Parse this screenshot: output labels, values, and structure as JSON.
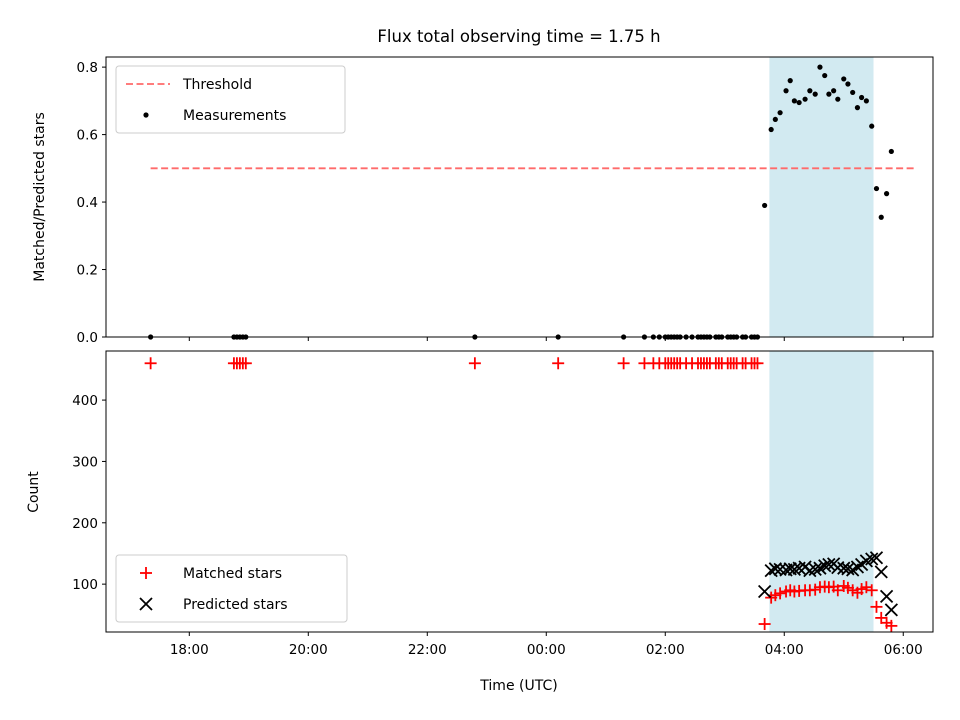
{
  "chart_data": {
    "title": "Flux total observing time = 1.75 h",
    "xlabel": "Time (UTC)",
    "x_ticks": [
      "18:00",
      "20:00",
      "22:00",
      "00:00",
      "02:00",
      "04:00",
      "06:00"
    ],
    "x_tick_hours": [
      18,
      20,
      22,
      24,
      26,
      28,
      30
    ],
    "xlim_hours": [
      16.6,
      30.5
    ],
    "highlight_band_hours": [
      27.75,
      29.5
    ],
    "colors": {
      "threshold": "#ff6a6a",
      "measurement": "#000000",
      "matched": "#ff0000",
      "predicted": "#000000",
      "band": "#add8e6"
    },
    "panels": [
      {
        "type": "scatter",
        "ylabel": "Matched/Predicted stars",
        "ylim": [
          0,
          0.83
        ],
        "y_ticks": [
          0,
          0.2,
          0.4,
          0.6,
          0.8
        ],
        "y_tick_labels": [
          "0.0",
          "0.2",
          "0.4",
          "0.6",
          "0.8"
        ],
        "legend": {
          "position": "upper-left",
          "entries": [
            "Threshold",
            "Measurements"
          ]
        },
        "threshold": {
          "name": "Threshold",
          "y": 0.5,
          "x_range": [
            17.35,
            30.2
          ]
        },
        "series": [
          {
            "name": "Measurements",
            "points": [
              [
                17.35,
                0
              ],
              [
                18.75,
                0
              ],
              [
                18.8,
                0
              ],
              [
                18.85,
                0
              ],
              [
                18.9,
                0
              ],
              [
                18.95,
                0
              ],
              [
                22.8,
                0
              ],
              [
                24.2,
                0
              ],
              [
                25.3,
                0
              ],
              [
                25.65,
                0
              ],
              [
                25.8,
                0
              ],
              [
                25.9,
                0
              ],
              [
                26.0,
                0
              ],
              [
                26.05,
                0
              ],
              [
                26.1,
                0
              ],
              [
                26.15,
                0
              ],
              [
                26.2,
                0
              ],
              [
                26.25,
                0
              ],
              [
                26.35,
                0
              ],
              [
                26.45,
                0
              ],
              [
                26.55,
                0
              ],
              [
                26.6,
                0
              ],
              [
                26.65,
                0
              ],
              [
                26.7,
                0
              ],
              [
                26.75,
                0
              ],
              [
                26.85,
                0
              ],
              [
                26.9,
                0
              ],
              [
                26.95,
                0
              ],
              [
                27.05,
                0
              ],
              [
                27.1,
                0
              ],
              [
                27.15,
                0
              ],
              [
                27.2,
                0
              ],
              [
                27.3,
                0
              ],
              [
                27.35,
                0
              ],
              [
                27.45,
                0
              ],
              [
                27.5,
                0
              ],
              [
                27.55,
                0
              ],
              [
                27.67,
                0.39
              ],
              [
                27.78,
                0.615
              ],
              [
                27.85,
                0.645
              ],
              [
                27.93,
                0.665
              ],
              [
                28.03,
                0.73
              ],
              [
                28.1,
                0.76
              ],
              [
                28.17,
                0.7
              ],
              [
                28.25,
                0.695
              ],
              [
                28.35,
                0.705
              ],
              [
                28.43,
                0.73
              ],
              [
                28.52,
                0.72
              ],
              [
                28.6,
                0.8
              ],
              [
                28.68,
                0.775
              ],
              [
                28.75,
                0.72
              ],
              [
                28.83,
                0.73
              ],
              [
                28.9,
                0.705
              ],
              [
                29.0,
                0.765
              ],
              [
                29.07,
                0.75
              ],
              [
                29.15,
                0.725
              ],
              [
                29.23,
                0.68
              ],
              [
                29.3,
                0.71
              ],
              [
                29.38,
                0.7
              ],
              [
                29.47,
                0.625
              ],
              [
                29.55,
                0.44
              ],
              [
                29.63,
                0.355
              ],
              [
                29.72,
                0.425
              ],
              [
                29.8,
                0.55
              ]
            ]
          }
        ]
      },
      {
        "type": "scatter",
        "ylabel": "Count",
        "ylim": [
          22,
          480
        ],
        "y_ticks": [
          100,
          200,
          300,
          400
        ],
        "y_tick_labels": [
          "100",
          "200",
          "300",
          "400"
        ],
        "legend": {
          "position": "lower-left",
          "entries": [
            "Matched stars",
            "Predicted stars"
          ]
        },
        "series": [
          {
            "name": "Matched stars",
            "marker": "plus",
            "points": [
              [
                17.35,
                460
              ],
              [
                18.75,
                460
              ],
              [
                18.8,
                460
              ],
              [
                18.85,
                460
              ],
              [
                18.9,
                460
              ],
              [
                18.95,
                460
              ],
              [
                22.8,
                460
              ],
              [
                24.2,
                460
              ],
              [
                25.3,
                460
              ],
              [
                25.65,
                460
              ],
              [
                25.8,
                460
              ],
              [
                25.9,
                460
              ],
              [
                26.0,
                460
              ],
              [
                26.05,
                460
              ],
              [
                26.1,
                460
              ],
              [
                26.15,
                460
              ],
              [
                26.2,
                460
              ],
              [
                26.25,
                460
              ],
              [
                26.35,
                460
              ],
              [
                26.45,
                460
              ],
              [
                26.55,
                460
              ],
              [
                26.6,
                460
              ],
              [
                26.65,
                460
              ],
              [
                26.7,
                460
              ],
              [
                26.75,
                460
              ],
              [
                26.85,
                460
              ],
              [
                26.9,
                460
              ],
              [
                26.95,
                460
              ],
              [
                27.05,
                460
              ],
              [
                27.1,
                460
              ],
              [
                27.15,
                460
              ],
              [
                27.2,
                460
              ],
              [
                27.3,
                460
              ],
              [
                27.35,
                460
              ],
              [
                27.45,
                460
              ],
              [
                27.5,
                460
              ],
              [
                27.55,
                460
              ],
              [
                27.67,
                35
              ],
              [
                27.78,
                78
              ],
              [
                27.85,
                82
              ],
              [
                27.93,
                85
              ],
              [
                28.03,
                88
              ],
              [
                28.1,
                90
              ],
              [
                28.17,
                88
              ],
              [
                28.25,
                89
              ],
              [
                28.35,
                90
              ],
              [
                28.43,
                90
              ],
              [
                28.52,
                91
              ],
              [
                28.6,
                95
              ],
              [
                28.68,
                96
              ],
              [
                28.75,
                95
              ],
              [
                28.83,
                96
              ],
              [
                28.9,
                90
              ],
              [
                29.0,
                97
              ],
              [
                29.07,
                94
              ],
              [
                29.15,
                90
              ],
              [
                29.23,
                86
              ],
              [
                29.3,
                92
              ],
              [
                29.38,
                95
              ],
              [
                29.47,
                90
              ],
              [
                29.55,
                63
              ],
              [
                29.63,
                45
              ],
              [
                29.72,
                37
              ],
              [
                29.8,
                32
              ]
            ]
          },
          {
            "name": "Predicted stars",
            "marker": "x",
            "points": [
              [
                27.67,
                88
              ],
              [
                27.78,
                122
              ],
              [
                27.85,
                125
              ],
              [
                27.93,
                124
              ],
              [
                28.03,
                123
              ],
              [
                28.1,
                125
              ],
              [
                28.17,
                124
              ],
              [
                28.25,
                126
              ],
              [
                28.35,
                128
              ],
              [
                28.43,
                122
              ],
              [
                28.52,
                124
              ],
              [
                28.6,
                126
              ],
              [
                28.68,
                130
              ],
              [
                28.75,
                132
              ],
              [
                28.83,
                133
              ],
              [
                28.9,
                127
              ],
              [
                29.0,
                126
              ],
              [
                29.07,
                125
              ],
              [
                29.15,
                123
              ],
              [
                29.23,
                128
              ],
              [
                29.3,
                132
              ],
              [
                29.38,
                138
              ],
              [
                29.47,
                141
              ],
              [
                29.55,
                143
              ],
              [
                29.63,
                120
              ],
              [
                29.72,
                80
              ],
              [
                29.8,
                58
              ]
            ]
          }
        ]
      }
    ]
  }
}
